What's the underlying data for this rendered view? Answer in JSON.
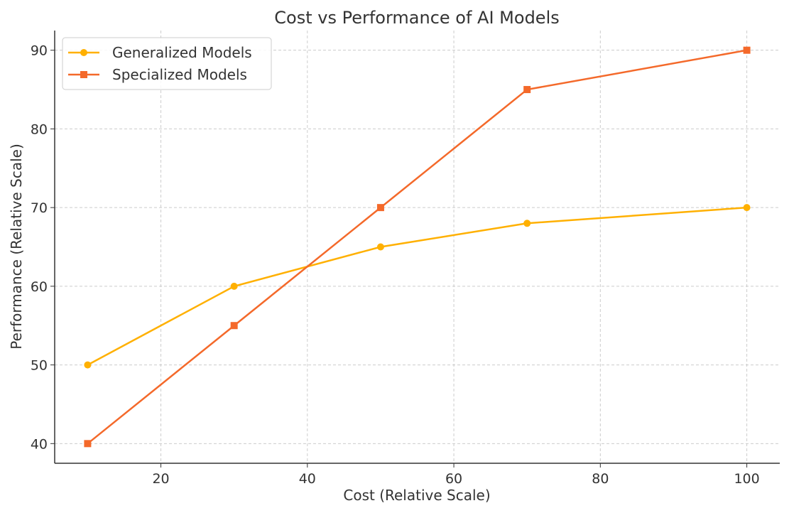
{
  "chart_data": {
    "type": "line",
    "title": "Cost vs Performance of AI Models",
    "xlabel": "Cost (Relative Scale)",
    "ylabel": "Performance (Relative Scale)",
    "xlim": [
      5.5,
      104.5
    ],
    "ylim": [
      37.5,
      92.5
    ],
    "xticks": [
      20,
      40,
      60,
      80,
      100
    ],
    "yticks": [
      40,
      50,
      60,
      70,
      80,
      90
    ],
    "grid": true,
    "legend": "top-left",
    "x": [
      10,
      30,
      50,
      70,
      100
    ],
    "series": [
      {
        "name": "Generalized Models",
        "values": [
          50,
          60,
          65,
          68,
          70
        ],
        "color": "#FFB000",
        "marker": "circle"
      },
      {
        "name": "Specialized Models",
        "values": [
          40,
          55,
          70,
          85,
          90
        ],
        "color": "#F4692A",
        "marker": "square"
      }
    ]
  }
}
